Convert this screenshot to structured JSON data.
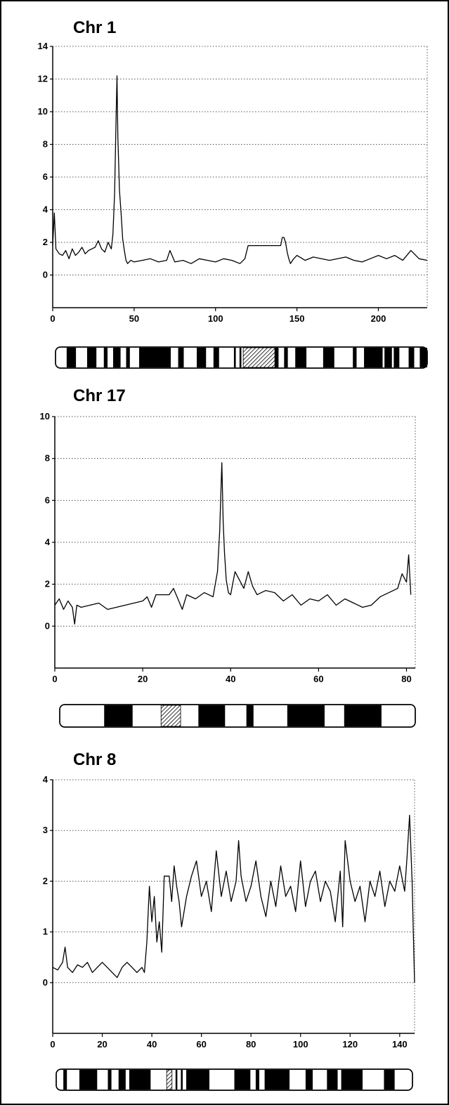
{
  "colors": {
    "ink": "#000000",
    "grid": "#555555",
    "background": "#ffffff"
  },
  "chart_data": [
    {
      "type": "line",
      "title": "Chr 1",
      "xlim": [
        0,
        230
      ],
      "ylim": [
        -2,
        14
      ],
      "x_ticks": [
        0,
        50,
        100,
        150,
        200
      ],
      "y_ticks": [
        0,
        2,
        4,
        6,
        8,
        10,
        12,
        14
      ],
      "grid": true,
      "series": [
        {
          "x": [
            0,
            1,
            2,
            4,
            6,
            8,
            10,
            12,
            14,
            16,
            18,
            20,
            22,
            24,
            26,
            28,
            30,
            32,
            34,
            36,
            37,
            38,
            39,
            39.5,
            40,
            40.5,
            41,
            42,
            43,
            44,
            45,
            46,
            48,
            50,
            55,
            60,
            65,
            70,
            72,
            75,
            80,
            85,
            90,
            95,
            100,
            105,
            110,
            115,
            118,
            120,
            125,
            130,
            135,
            140,
            141,
            142,
            143,
            144,
            145,
            146,
            148,
            150,
            155,
            160,
            165,
            170,
            175,
            180,
            185,
            190,
            195,
            200,
            205,
            210,
            215,
            220,
            225,
            230
          ],
          "y": [
            1.8,
            3.8,
            1.6,
            1.3,
            1.2,
            1.5,
            1.0,
            1.6,
            1.2,
            1.4,
            1.7,
            1.3,
            1.5,
            1.6,
            1.7,
            2.1,
            1.6,
            1.4,
            2.0,
            1.6,
            2.5,
            5.0,
            10.0,
            12.2,
            8.5,
            6.8,
            5.2,
            3.8,
            2.2,
            1.5,
            0.9,
            0.7,
            0.9,
            0.8,
            0.9,
            1.0,
            0.8,
            0.9,
            1.5,
            0.8,
            0.9,
            0.7,
            1.0,
            0.9,
            0.8,
            1.0,
            0.9,
            0.7,
            1.0,
            1.8,
            1.8,
            1.8,
            1.8,
            1.8,
            2.3,
            2.3,
            2.0,
            1.4,
            1.0,
            0.7,
            1.0,
            1.2,
            0.9,
            1.1,
            1.0,
            0.9,
            1.0,
            1.1,
            0.9,
            0.8,
            1.0,
            1.2,
            1.0,
            1.2,
            0.9,
            1.5,
            1.0,
            0.9
          ]
        }
      ]
    },
    {
      "type": "line",
      "title": "Chr 17",
      "xlim": [
        0,
        82
      ],
      "ylim": [
        -2,
        10
      ],
      "x_ticks": [
        0,
        20,
        40,
        60,
        80
      ],
      "y_ticks": [
        0,
        2,
        4,
        6,
        8,
        10
      ],
      "grid": true,
      "series": [
        {
          "x": [
            0,
            1,
            2,
            3,
            4,
            4.5,
            5,
            6,
            8,
            10,
            12,
            14,
            16,
            18,
            20,
            21,
            22,
            23,
            25,
            26,
            27,
            28,
            29,
            30,
            32,
            34,
            36,
            37,
            37.5,
            38,
            38.3,
            38.6,
            39,
            39.5,
            40,
            41,
            42,
            43,
            44,
            45,
            46,
            48,
            50,
            52,
            54,
            56,
            58,
            60,
            62,
            64,
            66,
            68,
            70,
            72,
            74,
            76,
            78,
            79,
            80,
            80.5,
            81
          ],
          "y": [
            1.0,
            1.3,
            0.8,
            1.2,
            0.9,
            0.1,
            1.0,
            0.9,
            1.0,
            1.1,
            0.8,
            0.9,
            1.0,
            1.1,
            1.2,
            1.4,
            0.9,
            1.5,
            1.5,
            1.5,
            1.8,
            1.3,
            0.8,
            1.5,
            1.3,
            1.6,
            1.4,
            2.6,
            4.5,
            7.8,
            5.0,
            3.5,
            2.2,
            1.6,
            1.5,
            2.6,
            2.2,
            1.8,
            2.6,
            1.9,
            1.5,
            1.7,
            1.6,
            1.2,
            1.5,
            1.0,
            1.3,
            1.2,
            1.5,
            1.0,
            1.3,
            1.1,
            0.9,
            1.0,
            1.4,
            1.6,
            1.8,
            2.5,
            2.1,
            3.4,
            1.5
          ]
        }
      ]
    },
    {
      "type": "line",
      "title": "Chr 8",
      "xlim": [
        0,
        146
      ],
      "ylim": [
        -1,
        4
      ],
      "x_ticks": [
        0,
        20,
        40,
        60,
        80,
        100,
        120,
        140
      ],
      "y_ticks": [
        0,
        1,
        2,
        3,
        4
      ],
      "grid": true,
      "series": [
        {
          "x": [
            0,
            2,
            4,
            5,
            6,
            8,
            10,
            12,
            14,
            16,
            18,
            20,
            22,
            24,
            26,
            28,
            30,
            32,
            34,
            36,
            37,
            38,
            39,
            40,
            41,
            42,
            43,
            44,
            45,
            46,
            47,
            48,
            49,
            50,
            51,
            52,
            54,
            56,
            58,
            60,
            62,
            64,
            66,
            68,
            70,
            72,
            74,
            75,
            76,
            78,
            80,
            82,
            84,
            86,
            88,
            90,
            92,
            94,
            96,
            98,
            100,
            102,
            104,
            106,
            108,
            110,
            112,
            114,
            116,
            117,
            118,
            120,
            122,
            124,
            126,
            128,
            130,
            132,
            134,
            136,
            138,
            140,
            142,
            143,
            144,
            145,
            145.5,
            146
          ],
          "y": [
            0.3,
            0.25,
            0.4,
            0.7,
            0.3,
            0.2,
            0.35,
            0.3,
            0.4,
            0.2,
            0.3,
            0.4,
            0.3,
            0.2,
            0.1,
            0.3,
            0.4,
            0.3,
            0.2,
            0.3,
            0.2,
            0.8,
            1.9,
            1.2,
            1.7,
            0.8,
            1.2,
            0.6,
            2.1,
            2.1,
            2.1,
            1.6,
            2.3,
            1.9,
            1.6,
            1.1,
            1.7,
            2.1,
            2.4,
            1.7,
            2.0,
            1.4,
            2.6,
            1.7,
            2.2,
            1.6,
            2.0,
            2.8,
            2.1,
            1.6,
            1.9,
            2.4,
            1.7,
            1.3,
            2.0,
            1.5,
            2.3,
            1.7,
            1.9,
            1.4,
            2.4,
            1.5,
            2.0,
            2.2,
            1.6,
            2.0,
            1.8,
            1.2,
            2.2,
            1.1,
            2.8,
            2.0,
            1.6,
            1.9,
            1.2,
            2.0,
            1.7,
            2.2,
            1.5,
            2.0,
            1.8,
            2.3,
            1.8,
            2.5,
            3.3,
            2.0,
            1.0,
            0.0
          ]
        }
      ]
    }
  ],
  "ideograms": [
    {
      "name": "chr1-ideogram",
      "bands": [
        [
          0.03,
          0.055,
          "dark"
        ],
        [
          0.085,
          0.11,
          "dark"
        ],
        [
          0.13,
          0.14,
          "dark"
        ],
        [
          0.155,
          0.175,
          "dark"
        ],
        [
          0.19,
          0.2,
          "dark"
        ],
        [
          0.225,
          0.31,
          "dark"
        ],
        [
          0.33,
          0.345,
          "dark"
        ],
        [
          0.38,
          0.405,
          "dark"
        ],
        [
          0.425,
          0.44,
          "dark"
        ],
        [
          0.48,
          0.485,
          "dark"
        ],
        [
          0.495,
          0.5,
          "dark"
        ],
        [
          0.505,
          0.59,
          "hatch"
        ],
        [
          0.59,
          0.6,
          "dark"
        ],
        [
          0.615,
          0.625,
          "dark"
        ],
        [
          0.645,
          0.675,
          "dark"
        ],
        [
          0.72,
          0.75,
          "dark"
        ],
        [
          0.8,
          0.81,
          "dark"
        ],
        [
          0.83,
          0.88,
          "dark"
        ],
        [
          0.885,
          0.905,
          "dark"
        ],
        [
          0.91,
          0.925,
          "dark"
        ],
        [
          0.95,
          0.965,
          "dark"
        ],
        [
          0.98,
          1.0,
          "dark"
        ]
      ]
    },
    {
      "name": "chr17-ideogram",
      "bands": [
        [
          0.125,
          0.205,
          "dark"
        ],
        [
          0.285,
          0.34,
          "hatch"
        ],
        [
          0.39,
          0.465,
          "dark"
        ],
        [
          0.525,
          0.545,
          "dark"
        ],
        [
          0.64,
          0.745,
          "dark"
        ],
        [
          0.8,
          0.905,
          "dark"
        ]
      ]
    },
    {
      "name": "chr8-ideogram",
      "bands": [
        [
          0.02,
          0.03,
          "dark"
        ],
        [
          0.065,
          0.115,
          "dark"
        ],
        [
          0.145,
          0.155,
          "dark"
        ],
        [
          0.175,
          0.195,
          "dark"
        ],
        [
          0.205,
          0.265,
          "dark"
        ],
        [
          0.31,
          0.325,
          "hatch"
        ],
        [
          0.335,
          0.34,
          "dark"
        ],
        [
          0.35,
          0.355,
          "dark"
        ],
        [
          0.365,
          0.43,
          "dark"
        ],
        [
          0.5,
          0.545,
          "dark"
        ],
        [
          0.56,
          0.57,
          "dark"
        ],
        [
          0.585,
          0.655,
          "dark"
        ],
        [
          0.7,
          0.72,
          "dark"
        ],
        [
          0.76,
          0.79,
          "dark"
        ],
        [
          0.8,
          0.86,
          "dark"
        ],
        [
          0.92,
          0.95,
          "dark"
        ]
      ]
    }
  ]
}
